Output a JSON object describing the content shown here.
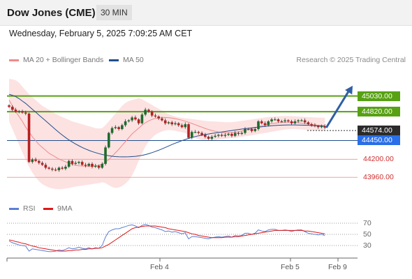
{
  "header": {
    "symbol": "Dow Jones (CME)",
    "interval": "30 MIN"
  },
  "timestamp": "Wednesday, February 5, 2025 7:09:25 AM CET",
  "legend": {
    "ma20_label": "MA 20 + Bollinger Bands",
    "ma20_color": "#f08a8a",
    "ma50_label": "MA 50",
    "ma50_color": "#1f4e8c",
    "rsi_label": "RSI",
    "rsi_color": "#5b7fd6",
    "ma9_label": "9MA",
    "ma9_color": "#e01818"
  },
  "copyright": "Research © 2025 Trading Central",
  "levels": {
    "resistance_2": "45030.00",
    "resistance_1": "44820.00",
    "last_price": "44574.00",
    "pivot": "44450.00",
    "support_1": "44200.00",
    "support_2": "43960.00"
  },
  "rsi_ticks": [
    "70",
    "50",
    "30"
  ],
  "x_ticks": [
    "Feb 4",
    "Feb 5",
    "Feb 9"
  ],
  "chart_data": {
    "type": "candlestick",
    "price_chart": {
      "ylim": [
        43860,
        45210
      ],
      "close": [
        44790,
        44760,
        44740,
        44745,
        44730,
        44720,
        44220,
        44245,
        44230,
        44210,
        44190,
        44160,
        44150,
        44140,
        44135,
        44160,
        44150,
        44170,
        44230,
        44200,
        44210,
        44220,
        44190,
        44180,
        44200,
        44170,
        44180,
        44160,
        44200,
        44370,
        44520,
        44570,
        44580,
        44560,
        44600,
        44640,
        44650,
        44680,
        44660,
        44620,
        44710,
        44760,
        44740,
        44700,
        44690,
        44670,
        44650,
        44620,
        44630,
        44610,
        44620,
        44600,
        44580,
        44610,
        44470,
        44530,
        44530,
        44520,
        44500,
        44480,
        44460,
        44480,
        44490,
        44500,
        44490,
        44500,
        44510,
        44490,
        44520,
        44510,
        44520,
        44560,
        44560,
        44540,
        44560,
        44640,
        44620,
        44600,
        44640,
        44660,
        44660,
        44640,
        44640,
        44650,
        44640,
        44620,
        44640,
        44650,
        44650,
        44630,
        44610,
        44600,
        44590,
        44580,
        44590,
        44575
      ],
      "ma20": [
        44860,
        44800,
        44740,
        44690,
        44640,
        44580,
        44530,
        44480,
        44440,
        44400,
        44370,
        44340,
        44310,
        44290,
        44270,
        44250,
        44235,
        44220,
        44210,
        44195,
        44185,
        44180,
        44178,
        44176,
        44175,
        44176,
        44180,
        44185,
        44195,
        44215,
        44245,
        44280,
        44315,
        44350,
        44390,
        44430,
        44470,
        44510,
        44540,
        44570,
        44600,
        44625,
        44645,
        44660,
        44670,
        44676,
        44680,
        44680,
        44678,
        44674,
        44668,
        44660,
        44652,
        44642,
        44630,
        44618,
        44605,
        44592,
        44580,
        44567,
        44555,
        44545,
        44537,
        44530,
        44526,
        44523,
        44522,
        44524,
        44528,
        44533,
        44540,
        44548,
        44556,
        44566,
        44575,
        44584,
        44594,
        44602,
        44610,
        44616,
        44621,
        44625,
        44628,
        44630,
        44631,
        44630,
        44628,
        44625,
        44621,
        44617,
        44613,
        44608,
        44604,
        44600,
        44597,
        44594
      ],
      "bb_upper": [
        45080,
        45075,
        45065,
        45040,
        45000,
        44960,
        44920,
        44890,
        44860,
        44830,
        44800,
        44780,
        44760,
        44740,
        44720,
        44700,
        44685,
        44670,
        44655,
        44640,
        44630,
        44620,
        44610,
        44600,
        44590,
        44580,
        44570,
        44565,
        44570,
        44600,
        44640,
        44680,
        44720,
        44760,
        44800,
        44830,
        44850,
        44860,
        44870,
        44880,
        44870,
        44850,
        44830,
        44810,
        44790,
        44770,
        44750,
        44730,
        44715,
        44700,
        44690,
        44682,
        44676,
        44672,
        44668,
        44664,
        44660,
        44655,
        44650,
        44645,
        44642,
        44640,
        44638,
        44636,
        44634,
        44632,
        44630,
        44632,
        44636,
        44640,
        44645,
        44650,
        44655,
        44660,
        44665,
        44670,
        44675,
        44680,
        44684,
        44688,
        44690,
        44692,
        44694,
        44696,
        44696,
        44694,
        44692,
        44690,
        44688,
        44686,
        44684,
        44682,
        44680,
        44679,
        44678,
        44677
      ],
      "bb_lower": [
        44640,
        44560,
        44480,
        44400,
        44320,
        44240,
        44170,
        44110,
        44060,
        44020,
        43990,
        43970,
        43955,
        43945,
        43940,
        43938,
        43940,
        43945,
        43950,
        43958,
        43965,
        43970,
        43975,
        43980,
        43985,
        43990,
        43995,
        44000,
        44010,
        44000,
        43980,
        43960,
        43950,
        43955,
        43970,
        43995,
        44030,
        44080,
        44150,
        44230,
        44310,
        44380,
        44430,
        44470,
        44500,
        44520,
        44535,
        44545,
        44550,
        44548,
        44542,
        44535,
        44528,
        44520,
        44500,
        44480,
        44465,
        44455,
        44445,
        44440,
        44438,
        44440,
        44445,
        44450,
        44455,
        44460,
        44465,
        44468,
        44470,
        44475,
        44480,
        44485,
        44490,
        44496,
        44502,
        44508,
        44514,
        44520,
        44526,
        44532,
        44538,
        44544,
        44550,
        44555,
        44558,
        44560,
        44560,
        44558,
        44556,
        44553,
        44550,
        44548,
        44546,
        44545,
        44544,
        44542
      ],
      "ma50": [
        44920,
        44910,
        44895,
        44875,
        44850,
        44825,
        44795,
        44765,
        44735,
        44705,
        44675,
        44645,
        44615,
        44585,
        44555,
        44525,
        44498,
        44472,
        44448,
        44426,
        44406,
        44387,
        44370,
        44354,
        44340,
        44327,
        44316,
        44306,
        44297,
        44290,
        44284,
        44279,
        44275,
        44273,
        44272,
        44272,
        44273,
        44275,
        44278,
        44282,
        44288,
        44296,
        44305,
        44316,
        44328,
        44341,
        44355,
        44370,
        44385,
        44400,
        44414,
        44427,
        44440,
        44452,
        44463,
        44473,
        44482,
        44490,
        44497,
        44503,
        44509,
        44515,
        44520,
        44525,
        44530,
        44535,
        44540,
        44545,
        44550,
        44555,
        44560,
        44564,
        44568,
        44572,
        44576,
        44580,
        44584,
        44588,
        44591,
        44594,
        44597,
        44599,
        44601,
        44602,
        44603,
        44603,
        44603,
        44602,
        44601,
        44600,
        44599,
        44597,
        44595,
        44593,
        44591,
        44590
      ],
      "projection": [
        44574,
        45030
      ]
    },
    "rsi_chart": {
      "ylim": [
        10,
        80
      ],
      "rsi": [
        38,
        35,
        33,
        31,
        30,
        29,
        20,
        24,
        23,
        22,
        21,
        20,
        19,
        19,
        20,
        22,
        21,
        23,
        26,
        24,
        25,
        27,
        25,
        24,
        26,
        24,
        26,
        25,
        30,
        45,
        55,
        58,
        60,
        60,
        62,
        64,
        66,
        67,
        65,
        62,
        66,
        68,
        66,
        63,
        62,
        60,
        58,
        55,
        56,
        54,
        55,
        53,
        51,
        53,
        42,
        46,
        46,
        45,
        44,
        43,
        42,
        44,
        45,
        46,
        45,
        46,
        47,
        45,
        48,
        47,
        48,
        52,
        52,
        50,
        52,
        58,
        56,
        55,
        58,
        59,
        59,
        57,
        57,
        58,
        57,
        55,
        57,
        58,
        58,
        55,
        52,
        51,
        50,
        49,
        50,
        48
      ],
      "ma9": [
        40,
        39,
        37,
        36,
        34,
        33,
        31,
        29,
        28,
        26,
        25,
        24,
        23,
        22,
        21,
        20,
        20,
        20,
        21,
        21,
        22,
        22,
        23,
        23,
        24,
        24,
        25,
        25,
        26,
        29,
        32,
        36,
        40,
        44,
        48,
        52,
        56,
        60,
        62,
        63,
        64,
        65,
        65,
        65,
        65,
        64,
        63,
        62,
        60,
        59,
        58,
        57,
        56,
        55,
        53,
        51,
        50,
        48,
        47,
        46,
        45,
        44,
        44,
        44,
        44,
        45,
        45,
        45,
        46,
        46,
        47,
        48,
        49,
        50,
        51,
        52,
        53,
        54,
        55,
        56,
        57,
        57,
        57,
        57,
        57,
        57,
        57,
        57,
        57,
        56,
        56,
        55,
        54,
        53,
        52,
        51
      ]
    },
    "xlabel": "",
    "ylabel": ""
  }
}
